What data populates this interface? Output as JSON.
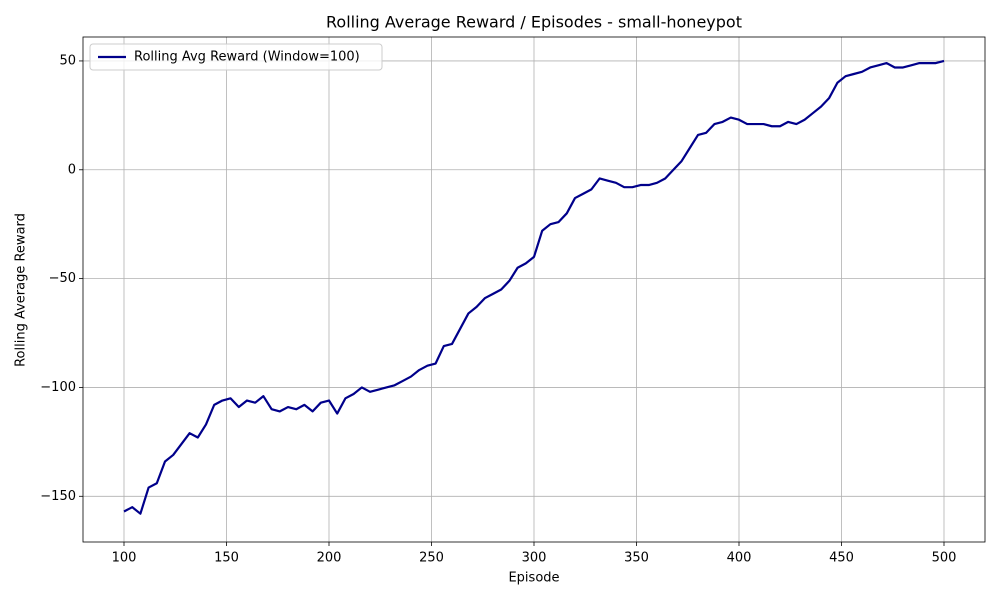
{
  "chart_data": {
    "type": "line",
    "title": "Rolling Average Reward / Episodes - small-honeypot",
    "x_label": "Episode",
    "y_label": "Rolling Average Reward",
    "x": [
      100,
      104,
      108,
      112,
      116,
      120,
      124,
      128,
      132,
      136,
      140,
      144,
      148,
      152,
      156,
      160,
      164,
      168,
      172,
      176,
      180,
      184,
      188,
      192,
      196,
      200,
      204,
      208,
      212,
      216,
      220,
      224,
      228,
      232,
      236,
      240,
      244,
      248,
      252,
      256,
      260,
      264,
      268,
      272,
      276,
      280,
      284,
      288,
      292,
      296,
      300,
      304,
      308,
      312,
      316,
      320,
      324,
      328,
      332,
      336,
      340,
      344,
      348,
      352,
      356,
      360,
      364,
      368,
      372,
      376,
      380,
      384,
      388,
      392,
      396,
      400,
      404,
      408,
      412,
      416,
      420,
      424,
      428,
      432,
      436,
      440,
      444,
      448,
      452,
      456,
      460,
      464,
      468,
      472,
      476,
      480,
      484,
      488,
      492,
      496,
      500
    ],
    "series": [
      {
        "name": "Rolling Avg Reward (Window=100)",
        "color": "#00008b",
        "values": [
          -157,
          -155,
          -158,
          -146,
          -144,
          -134,
          -131,
          -126,
          -121,
          -123,
          -117,
          -108,
          -106,
          -105,
          -109,
          -106,
          -107,
          -104,
          -110,
          -111,
          -109,
          -110,
          -108,
          -111,
          -107,
          -106,
          -112,
          -105,
          -103,
          -100,
          -102,
          -101,
          -100,
          -99,
          -97,
          -95,
          -92,
          -90,
          -89,
          -81,
          -80,
          -73,
          -66,
          -63,
          -59,
          -57,
          -55,
          -51,
          -45,
          -43,
          -40,
          -28,
          -25,
          -24,
          -20,
          -13,
          -11,
          -9,
          -4,
          -5,
          -6,
          -8,
          -8,
          -7,
          -7,
          -6,
          -4,
          0,
          4,
          10,
          16,
          17,
          21,
          22,
          24,
          23,
          21,
          21,
          21,
          20,
          20,
          22,
          21,
          23,
          26,
          29,
          33,
          40,
          43,
          44,
          45,
          47,
          48,
          49,
          47,
          47,
          48,
          49,
          49,
          49,
          50
        ]
      }
    ],
    "xlim": [
      80,
      520
    ],
    "ylim": [
      -171,
      61
    ],
    "xticks": [
      100,
      150,
      200,
      250,
      300,
      350,
      400,
      450,
      500
    ],
    "yticks": [
      {
        "value": -150,
        "label": "−150"
      },
      {
        "value": -100,
        "label": "−100"
      },
      {
        "value": -50,
        "label": "−50"
      },
      0,
      50
    ],
    "grid": true,
    "legend": "upper-left"
  }
}
